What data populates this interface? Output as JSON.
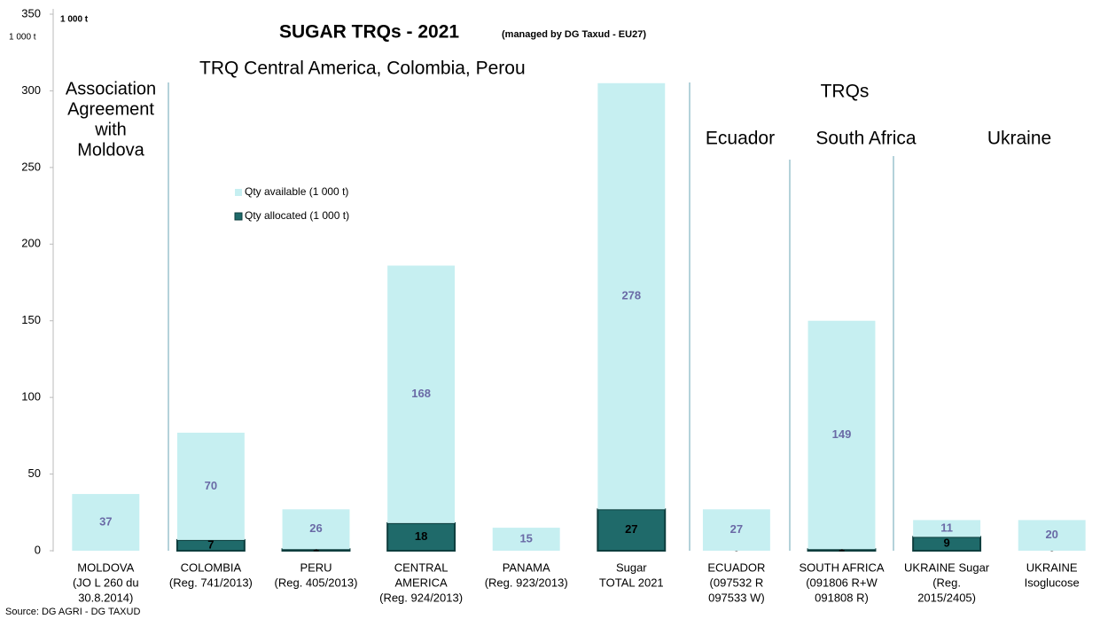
{
  "chart_data": {
    "type": "stacked_bar",
    "title": "SUGAR TRQs - 2021",
    "subtitle": "(managed by DG Taxud  -  EU27)",
    "unit_label": "1 000 t",
    "unit_label_bold": "1 000 t",
    "source": "Source: DG AGRI - DG TAXUD",
    "group_labels": {
      "moldova": [
        "Association",
        "Agreement",
        "with",
        "Moldova"
      ],
      "central": "TRQ Central America, Colombia, Perou",
      "trqs": "TRQs",
      "ecuador": "Ecuador",
      "south_africa": "South Africa",
      "ukraine": "Ukraine"
    },
    "categories": [
      [
        "MOLDOVA",
        "(JO L 260 du",
        "30.8.2014)"
      ],
      [
        "COLOMBIA",
        "(Reg. 741/2013)"
      ],
      [
        "PERU",
        "(Reg. 405/2013)"
      ],
      [
        "CENTRAL",
        "AMERICA",
        "(Reg. 924/2013)"
      ],
      [
        "PANAMA",
        "(Reg. 923/2013)"
      ],
      [
        "Sugar",
        "TOTAL 2021"
      ],
      [
        "ECUADOR",
        "(097532 R",
        "097533 W)"
      ],
      [
        "SOUTH AFRICA",
        "(091806 R+W",
        "091808 R)"
      ],
      [
        "UKRAINE Sugar",
        "(Reg.",
        "2015/2405)"
      ],
      [
        "UKRAINE",
        "Isoglucose"
      ]
    ],
    "series": [
      {
        "name": "Qty available (1 000 t)",
        "color": "#c6eff1",
        "values": [
          37,
          70,
          26,
          168,
          15,
          278,
          27,
          149,
          11,
          20
        ]
      },
      {
        "name": "Qty allocated (1 000 t)",
        "color": "#1f6a6a",
        "values": [
          null,
          7,
          1,
          18,
          null,
          27,
          0,
          1,
          9,
          0
        ]
      }
    ],
    "stack_order": [
      1,
      0
    ],
    "ylim": [
      0,
      350
    ],
    "yticks": [
      0,
      50,
      100,
      150,
      200,
      250,
      300,
      350
    ]
  }
}
